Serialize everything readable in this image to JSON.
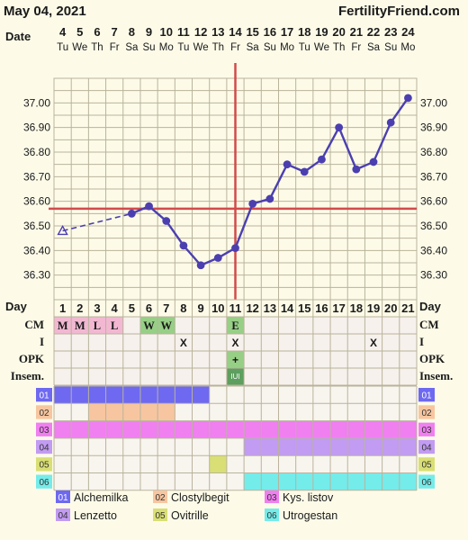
{
  "header": {
    "date": "May 04, 2021",
    "site": "FertilityFriend.com"
  },
  "colors": {
    "background": "#fdfbe8",
    "grid": "#b9b39b",
    "line": "#4b3fb0",
    "coverline": "#d24a4a",
    "cm_fertile": "#f2b8d2",
    "cm_egg": "#97cf86",
    "ovulation_cell": "#5d9f5e",
    "med_01": "#6e69f0",
    "med_02": "#f7c6a0",
    "med_03": "#f07ff0",
    "med_04": "#c29bf2",
    "med_05": "#d9df74",
    "med_06": "#74ecea"
  },
  "labels": {
    "date_row": "Date",
    "day_row": "Day",
    "cm": "CM",
    "i": "I",
    "opk": "OPK",
    "insem": "Insem."
  },
  "chart_data": {
    "type": "line",
    "dates": [
      "4",
      "5",
      "6",
      "7",
      "8",
      "9",
      "10",
      "11",
      "12",
      "13",
      "14",
      "15",
      "16",
      "17",
      "18",
      "19",
      "20",
      "21",
      "22",
      "23",
      "24"
    ],
    "weekdays": [
      "Tu",
      "We",
      "Th",
      "Fr",
      "Sa",
      "Su",
      "Mo",
      "Tu",
      "We",
      "Th",
      "Fr",
      "Sa",
      "Su",
      "Mo",
      "Tu",
      "We",
      "Th",
      "Fr",
      "Sa",
      "Su",
      "Mo"
    ],
    "days": [
      1,
      2,
      3,
      4,
      5,
      6,
      7,
      8,
      9,
      10,
      11,
      12,
      13,
      14,
      15,
      16,
      17,
      18,
      19,
      20,
      21
    ],
    "temperatures": [
      36.48,
      null,
      null,
      null,
      36.55,
      36.58,
      36.52,
      36.42,
      36.34,
      36.37,
      36.41,
      36.59,
      36.61,
      36.75,
      36.72,
      36.77,
      36.9,
      36.73,
      36.76,
      36.92,
      37.02
    ],
    "open_marker_days": [
      1
    ],
    "dashed_segment_days": [
      1,
      5
    ],
    "y_ticks": [
      "37.00",
      "36.90",
      "36.80",
      "36.70",
      "36.60",
      "36.50",
      "36.40",
      "36.30"
    ],
    "ylim": [
      36.2,
      37.1
    ],
    "coverline": 36.57,
    "ovulation_day": 11,
    "grid": true,
    "cm": [
      "M",
      "M",
      "L",
      "L",
      "",
      "W",
      "W",
      "",
      "",
      "",
      "E",
      "",
      "",
      "",
      "",
      "",
      "",
      "",
      "",
      "",
      ""
    ],
    "intercourse": [
      "",
      "",
      "",
      "",
      "",
      "",
      "",
      "X",
      "",
      "",
      "X",
      "",
      "",
      "",
      "",
      "",
      "",
      "",
      "X",
      "",
      ""
    ],
    "opk": [
      "",
      "",
      "",
      "",
      "",
      "",
      "",
      "",
      "",
      "",
      "+",
      "",
      "",
      "",
      "",
      "",
      "",
      "",
      "",
      "",
      ""
    ],
    "insem": [
      "",
      "",
      "",
      "",
      "",
      "",
      "",
      "",
      "",
      "",
      "IUI",
      "",
      "",
      "",
      "",
      "",
      "",
      "",
      "",
      "",
      ""
    ],
    "medications": [
      {
        "code": "01",
        "name": "Alchemilka",
        "days": [
          1,
          2,
          3,
          4,
          5,
          6,
          7,
          8,
          9
        ]
      },
      {
        "code": "02",
        "name": "Clostylbegit",
        "days": [
          3,
          4,
          5,
          6,
          7
        ]
      },
      {
        "code": "03",
        "name": "Kys. listov",
        "days": [
          1,
          2,
          3,
          4,
          5,
          6,
          7,
          8,
          9,
          10,
          11,
          12,
          13,
          14,
          15,
          16,
          17,
          18,
          19,
          20,
          21
        ]
      },
      {
        "code": "04",
        "name": "Lenzetto",
        "days": [
          12,
          13,
          14,
          15,
          16,
          17,
          18,
          19,
          20,
          21
        ]
      },
      {
        "code": "05",
        "name": "Ovitrille",
        "days": [
          10
        ]
      },
      {
        "code": "06",
        "name": "Utrogestan",
        "days": [
          12,
          13,
          14,
          15,
          16,
          17,
          18,
          19,
          20,
          21
        ]
      }
    ]
  }
}
